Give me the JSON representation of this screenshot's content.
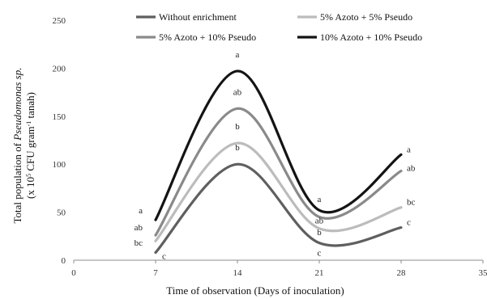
{
  "chart_data": {
    "type": "line",
    "xlabel": "Time of observation (Days of inoculation)",
    "ylabel": {
      "prefix": "Total population of ",
      "italic": "Pseudomonas sp.",
      "line2_prefix": "(x 10",
      "line2_sup1": "5",
      "line2_mid": " CFU gram",
      "line2_sup2": "-1",
      "line2_suffix": " tanah)"
    },
    "xlim": [
      0,
      35
    ],
    "ylim": [
      0,
      250
    ],
    "x_ticks": [
      0,
      7,
      14,
      21,
      28,
      35
    ],
    "y_ticks": [
      0,
      50,
      100,
      150,
      200,
      250
    ],
    "grid": false,
    "legend_position": "top",
    "series": [
      {
        "name": "Without enrichment",
        "color": "#5f5f5f",
        "x": [
          7,
          14,
          21,
          28
        ],
        "values": [
          8,
          100,
          18,
          34
        ],
        "labels": [
          "c",
          "b",
          "c",
          "c"
        ]
      },
      {
        "name": "5% Azoto + 5% Pseudo",
        "color": "#bcbcbc",
        "x": [
          7,
          14,
          21,
          28
        ],
        "values": [
          20,
          122,
          33,
          55
        ],
        "labels": [
          "bc",
          "b",
          "b",
          "bc"
        ]
      },
      {
        "name": "5% Azoto + 10% Pseudo",
        "color": "#8a8a8a",
        "x": [
          7,
          14,
          21,
          28
        ],
        "values": [
          26,
          158,
          45,
          93
        ],
        "labels": [
          "ab",
          "ab",
          "ab",
          "ab"
        ]
      },
      {
        "name": "10% Azoto + 10% Pseudo",
        "color": "#141414",
        "x": [
          7,
          14,
          21,
          28
        ],
        "values": [
          42,
          197,
          52,
          110
        ],
        "labels": [
          "a",
          "a",
          "a",
          "a"
        ]
      }
    ]
  }
}
